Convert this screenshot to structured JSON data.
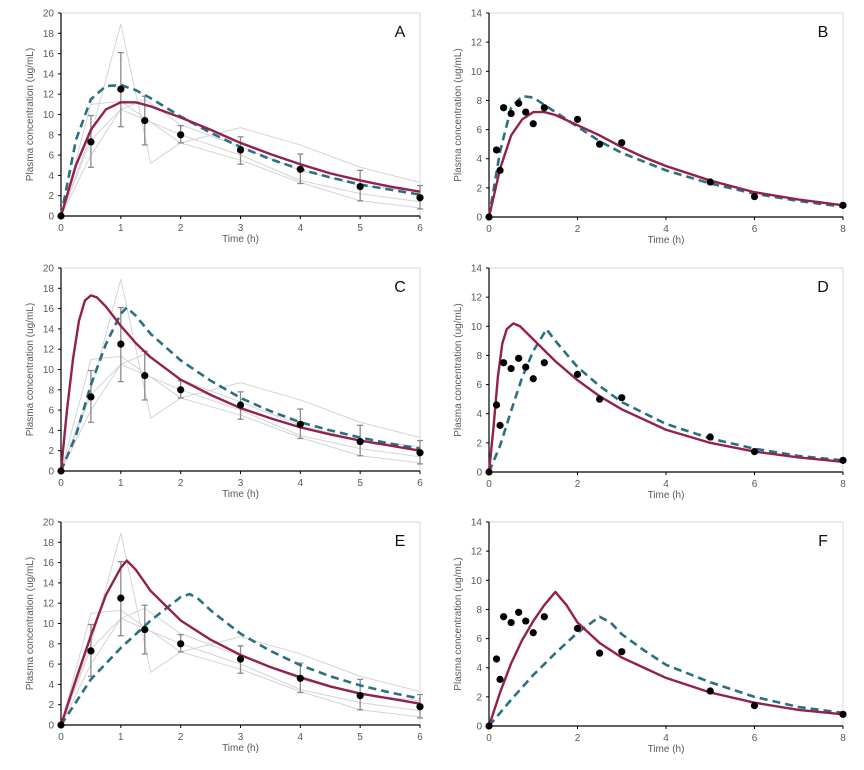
{
  "colors": {
    "model_solid": "#93204f",
    "model_dashed": "#2b6f82",
    "individual": "#d4d4d4",
    "observed": "#000000",
    "error_bar": "#8a8a8a"
  },
  "chart_data": [
    {
      "panel": "A",
      "type": "line",
      "xlabel": "Time (h)",
      "ylabel": "Plasma concentration (ug/mL)",
      "xlim": [
        0,
        6
      ],
      "ylim": [
        0,
        20
      ],
      "xticks": [
        0,
        1,
        2,
        3,
        4,
        5,
        6
      ],
      "yticks": [
        0,
        2,
        4,
        6,
        8,
        10,
        12,
        14,
        16,
        18,
        20
      ],
      "observed": {
        "x": [
          0,
          0.5,
          1,
          1.4,
          2,
          3,
          4,
          5,
          6
        ],
        "y": [
          0,
          7.3,
          12.5,
          9.4,
          8.0,
          6.5,
          4.6,
          2.9,
          1.8
        ],
        "err_low": [
          0,
          4.8,
          8.8,
          7.0,
          7.2,
          5.1,
          3.2,
          1.5,
          0.7
        ],
        "err_high": [
          0,
          9.9,
          16.1,
          11.8,
          8.9,
          7.8,
          6.1,
          4.5,
          3.0
        ]
      },
      "individuals": [
        {
          "x": [
            0,
            0.5,
            1,
            1.5,
            2,
            3,
            4,
            5,
            6
          ],
          "y": [
            0,
            8,
            18.9,
            5.2,
            7.2,
            5.5,
            3.3,
            1.5,
            0.8
          ]
        },
        {
          "x": [
            0,
            0.5,
            1,
            2,
            3,
            4,
            5,
            6
          ],
          "y": [
            0,
            11,
            11.3,
            7.2,
            8.7,
            7.0,
            4.8,
            3.3
          ]
        },
        {
          "x": [
            0,
            0.5,
            1,
            1.4,
            2,
            3,
            4,
            5,
            6
          ],
          "y": [
            0,
            7.5,
            10.5,
            11.5,
            9,
            6.8,
            4.5,
            3,
            2.4
          ]
        },
        {
          "x": [
            0,
            0.5,
            1,
            2,
            3,
            4,
            5,
            6
          ],
          "y": [
            0,
            6,
            10.5,
            8,
            6,
            3.5,
            2.2,
            1.4
          ]
        }
      ],
      "model_solid": {
        "x": [
          0,
          0.25,
          0.5,
          0.75,
          1,
          1.25,
          1.5,
          2,
          2.5,
          3,
          3.5,
          4,
          4.5,
          5,
          5.5,
          6
        ],
        "y": [
          0,
          5,
          8.5,
          10.5,
          11.2,
          11.2,
          10.8,
          9.7,
          8.5,
          7.2,
          6.1,
          5.1,
          4.2,
          3.5,
          2.9,
          2.4
        ]
      },
      "model_dashed": {
        "x": [
          0,
          0.25,
          0.5,
          0.75,
          1,
          1.25,
          1.5,
          2,
          2.5,
          3,
          3.5,
          4,
          4.5,
          5,
          5.5,
          6
        ],
        "y": [
          0,
          7.5,
          11.5,
          12.8,
          12.9,
          12.4,
          11.6,
          9.8,
          8.2,
          6.8,
          5.6,
          4.6,
          3.8,
          3.1,
          2.6,
          2.1
        ]
      }
    },
    {
      "panel": "B",
      "type": "line",
      "xlabel": "Time (h)",
      "ylabel": "Plasma concentration (ug/mL)",
      "xlim": [
        0,
        8
      ],
      "ylim": [
        0,
        14
      ],
      "xticks": [
        0,
        2,
        4,
        6,
        8
      ],
      "yticks": [
        0,
        2,
        4,
        6,
        8,
        10,
        12,
        14
      ],
      "observed": {
        "x": [
          0,
          0.17,
          0.25,
          0.33,
          0.5,
          0.67,
          0.83,
          1,
          1.25,
          2,
          2.5,
          3,
          5,
          6,
          8
        ],
        "y": [
          0,
          4.6,
          3.2,
          7.5,
          7.1,
          7.8,
          7.2,
          6.4,
          7.5,
          6.7,
          5.0,
          5.1,
          2.4,
          1.4,
          0.8
        ]
      },
      "individuals": [],
      "model_solid": {
        "x": [
          0,
          0.25,
          0.5,
          0.75,
          1,
          1.25,
          1.5,
          2,
          2.5,
          3,
          3.5,
          4,
          5,
          6,
          7,
          8
        ],
        "y": [
          0,
          3.3,
          5.6,
          6.7,
          7.2,
          7.2,
          7.0,
          6.3,
          5.6,
          4.8,
          4.1,
          3.5,
          2.5,
          1.7,
          1.2,
          0.8
        ]
      },
      "model_dashed": {
        "x": [
          0,
          0.25,
          0.5,
          0.75,
          1,
          1.25,
          1.5,
          2,
          2.5,
          3,
          4,
          5,
          6,
          7,
          8
        ],
        "y": [
          0,
          4.5,
          7.5,
          8.3,
          8.2,
          7.7,
          7.2,
          6.2,
          5.2,
          4.4,
          3.2,
          2.3,
          1.6,
          1.1,
          0.7
        ]
      }
    },
    {
      "panel": "C",
      "type": "line",
      "xlabel": "Time (h)",
      "ylabel": "Plasma concentration (ug/mL)",
      "xlim": [
        0,
        6
      ],
      "ylim": [
        0,
        20
      ],
      "xticks": [
        0,
        1,
        2,
        3,
        4,
        5,
        6
      ],
      "yticks": [
        0,
        2,
        4,
        6,
        8,
        10,
        12,
        14,
        16,
        18,
        20
      ],
      "observed": {
        "x": [
          0,
          0.5,
          1,
          1.4,
          2,
          3,
          4,
          5,
          6
        ],
        "y": [
          0,
          7.3,
          12.5,
          9.4,
          8.0,
          6.5,
          4.6,
          2.9,
          1.8
        ],
        "err_low": [
          0,
          4.8,
          8.8,
          7.0,
          7.2,
          5.1,
          3.2,
          1.5,
          0.7
        ],
        "err_high": [
          0,
          9.9,
          16.1,
          11.8,
          8.9,
          7.8,
          6.1,
          4.5,
          3.0
        ]
      },
      "individuals": [
        {
          "x": [
            0,
            0.5,
            1,
            1.5,
            2,
            3,
            4,
            5,
            6
          ],
          "y": [
            0,
            8,
            18.9,
            5.2,
            7.2,
            5.5,
            3.3,
            1.5,
            0.8
          ]
        },
        {
          "x": [
            0,
            0.5,
            1,
            2,
            3,
            4,
            5,
            6
          ],
          "y": [
            0,
            11,
            11.3,
            7.2,
            8.7,
            7.0,
            4.8,
            3.3
          ]
        },
        {
          "x": [
            0,
            0.5,
            1,
            1.4,
            2,
            3,
            4,
            5,
            6
          ],
          "y": [
            0,
            7.5,
            10.5,
            11.5,
            9,
            6.8,
            4.5,
            3,
            2.4
          ]
        },
        {
          "x": [
            0,
            0.5,
            1,
            2,
            3,
            4,
            5,
            6
          ],
          "y": [
            0,
            6,
            10.5,
            8,
            6,
            3.5,
            2.2,
            1.4
          ]
        }
      ],
      "model_solid": {
        "x": [
          0,
          0.1,
          0.2,
          0.3,
          0.4,
          0.5,
          0.6,
          0.75,
          1,
          1.25,
          1.5,
          2,
          2.5,
          3,
          3.5,
          4,
          4.5,
          5,
          5.5,
          6
        ],
        "y": [
          0,
          6,
          11,
          14.8,
          16.8,
          17.3,
          17.1,
          16.2,
          14.3,
          12.6,
          11.2,
          9.0,
          7.5,
          6.2,
          5.2,
          4.3,
          3.6,
          3.0,
          2.5,
          2.0
        ]
      },
      "model_dashed": {
        "x": [
          0,
          0.25,
          0.5,
          0.75,
          1,
          1.1,
          1.25,
          1.5,
          2,
          2.5,
          3,
          3.5,
          4,
          4.5,
          5,
          5.5,
          6
        ],
        "y": [
          0,
          3.5,
          8.5,
          12.5,
          15.5,
          16.1,
          15.3,
          13.5,
          10.9,
          8.9,
          7.2,
          5.9,
          4.8,
          4.0,
          3.3,
          2.7,
          2.2
        ]
      }
    },
    {
      "panel": "D",
      "type": "line",
      "xlabel": "Time (h)",
      "ylabel": "Plasma concentration (ug/mL)",
      "xlim": [
        0,
        8
      ],
      "ylim": [
        0,
        14
      ],
      "xticks": [
        0,
        2,
        4,
        6,
        8
      ],
      "yticks": [
        0,
        2,
        4,
        6,
        8,
        10,
        12,
        14
      ],
      "observed": {
        "x": [
          0,
          0.17,
          0.25,
          0.33,
          0.5,
          0.67,
          0.83,
          1,
          1.25,
          2,
          2.5,
          3,
          5,
          6,
          8
        ],
        "y": [
          0,
          4.6,
          3.2,
          7.5,
          7.1,
          7.8,
          7.2,
          6.4,
          7.5,
          6.7,
          5.0,
          5.1,
          2.4,
          1.4,
          0.8
        ]
      },
      "individuals": [],
      "model_solid": {
        "x": [
          0,
          0.1,
          0.2,
          0.3,
          0.4,
          0.55,
          0.7,
          1,
          1.5,
          2,
          2.5,
          3,
          4,
          5,
          6,
          7,
          8
        ],
        "y": [
          0,
          3,
          6.5,
          8.8,
          9.8,
          10.2,
          10,
          9.1,
          7.6,
          6.3,
          5.2,
          4.3,
          2.9,
          2.0,
          1.4,
          1.0,
          0.7
        ]
      },
      "model_dashed": {
        "x": [
          0,
          0.25,
          0.5,
          0.75,
          1,
          1.3,
          1.5,
          2,
          2.5,
          3,
          4,
          5,
          6,
          7,
          8
        ],
        "y": [
          0,
          1.8,
          4.2,
          6.5,
          8.3,
          9.8,
          9.0,
          7.2,
          5.9,
          4.8,
          3.3,
          2.3,
          1.6,
          1.1,
          0.8
        ]
      }
    },
    {
      "panel": "E",
      "type": "line",
      "xlabel": "Time (h)",
      "ylabel": "Plasma concentration (ug/mL)",
      "xlim": [
        0,
        6
      ],
      "ylim": [
        0,
        20
      ],
      "xticks": [
        0,
        1,
        2,
        3,
        4,
        5,
        6
      ],
      "yticks": [
        0,
        2,
        4,
        6,
        8,
        10,
        12,
        14,
        16,
        18,
        20
      ],
      "observed": {
        "x": [
          0,
          0.5,
          1,
          1.4,
          2,
          3,
          4,
          5,
          6
        ],
        "y": [
          0,
          7.3,
          12.5,
          9.4,
          8.0,
          6.5,
          4.6,
          2.9,
          1.8
        ],
        "err_low": [
          0,
          4.8,
          8.8,
          7.0,
          7.2,
          5.1,
          3.2,
          1.5,
          0.7
        ],
        "err_high": [
          0,
          9.9,
          16.1,
          11.8,
          8.9,
          7.8,
          6.1,
          4.5,
          3.0
        ]
      },
      "individuals": [
        {
          "x": [
            0,
            0.5,
            1,
            1.5,
            2,
            3,
            4,
            5,
            6
          ],
          "y": [
            0,
            8,
            18.9,
            5.2,
            7.2,
            5.5,
            3.3,
            1.5,
            0.8
          ]
        },
        {
          "x": [
            0,
            0.5,
            1,
            2,
            3,
            4,
            5,
            6
          ],
          "y": [
            0,
            11,
            11.3,
            7.2,
            8.7,
            7.0,
            4.8,
            3.3
          ]
        },
        {
          "x": [
            0,
            0.5,
            1,
            1.4,
            2,
            3,
            4,
            5,
            6
          ],
          "y": [
            0,
            7.5,
            10.5,
            11.5,
            9,
            6.8,
            4.5,
            3,
            2.4
          ]
        },
        {
          "x": [
            0,
            0.5,
            1,
            2,
            3,
            4,
            5,
            6
          ],
          "y": [
            0,
            6,
            10.5,
            8,
            6,
            3.5,
            2.2,
            1.4
          ]
        }
      ],
      "model_solid": {
        "x": [
          0,
          0.25,
          0.5,
          0.75,
          1,
          1.1,
          1.25,
          1.5,
          2,
          2.5,
          3,
          3.5,
          4,
          4.5,
          5,
          5.5,
          6
        ],
        "y": [
          0,
          4.5,
          8.8,
          12.8,
          15.5,
          16.2,
          15.3,
          13.2,
          10.3,
          8.4,
          6.9,
          5.7,
          4.7,
          3.8,
          3.1,
          2.6,
          2.1
        ]
      },
      "model_dashed": {
        "x": [
          0,
          0.5,
          1,
          1.5,
          2,
          2.15,
          2.3,
          2.5,
          3,
          3.5,
          4,
          4.5,
          5,
          5.5,
          6
        ],
        "y": [
          0,
          4.5,
          7.6,
          10.3,
          12.6,
          12.9,
          12.4,
          11.3,
          9.0,
          7.3,
          5.9,
          4.8,
          3.9,
          3.2,
          2.6
        ]
      }
    },
    {
      "panel": "F",
      "type": "line",
      "xlabel": "Time (h)",
      "ylabel": "Plasma concentration (ug/mL)",
      "xlim": [
        0,
        8
      ],
      "ylim": [
        0,
        14
      ],
      "xticks": [
        0,
        2,
        4,
        6,
        8
      ],
      "yticks": [
        0,
        2,
        4,
        6,
        8,
        10,
        12,
        14
      ],
      "observed": {
        "x": [
          0,
          0.17,
          0.25,
          0.33,
          0.5,
          0.67,
          0.83,
          1,
          1.25,
          2,
          2.5,
          3,
          5,
          6,
          8
        ],
        "y": [
          0,
          4.6,
          3.2,
          7.5,
          7.1,
          7.8,
          7.2,
          6.4,
          7.5,
          6.7,
          5.0,
          5.1,
          2.4,
          1.4,
          0.8
        ]
      },
      "individuals": [],
      "model_solid": {
        "x": [
          0,
          0.25,
          0.5,
          0.75,
          1,
          1.25,
          1.5,
          1.75,
          2,
          2.5,
          3,
          4,
          5,
          6,
          7,
          8
        ],
        "y": [
          0,
          2.3,
          4.3,
          5.9,
          7.2,
          8.3,
          9.2,
          8.3,
          7.1,
          5.7,
          4.7,
          3.3,
          2.3,
          1.6,
          1.1,
          0.8
        ]
      },
      "model_dashed": {
        "x": [
          0,
          0.5,
          1,
          1.5,
          2,
          2.5,
          2.75,
          3,
          3.5,
          4,
          5,
          6,
          7,
          8
        ],
        "y": [
          0,
          1.8,
          3.5,
          5.0,
          6.4,
          7.5,
          7.1,
          6.3,
          5.2,
          4.2,
          3.0,
          2.0,
          1.3,
          0.9
        ]
      }
    }
  ]
}
